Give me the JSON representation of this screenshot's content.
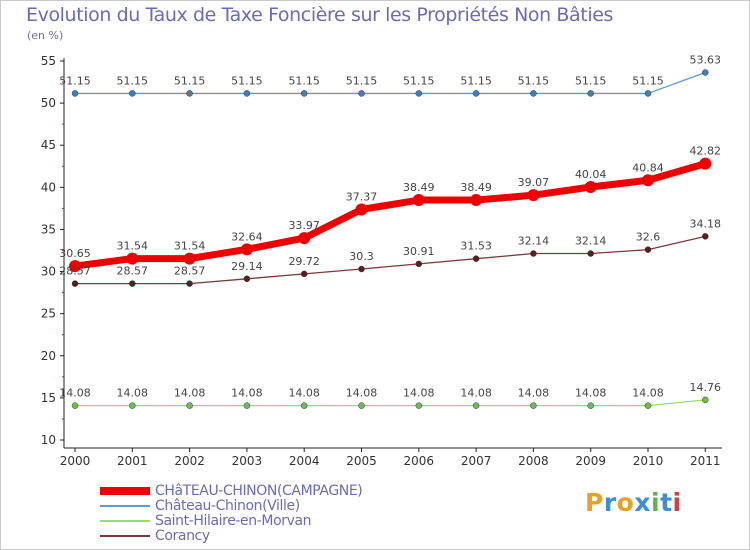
{
  "title": "Evolution du Taux de Taxe Foncière sur les Propriétés Non Bâties",
  "unit": "(en %)",
  "brand": "Proxiti",
  "brand_colors": [
    "#e8a02a",
    "#3c8fd0",
    "#e8a02a",
    "#3c8fd0",
    "#58b84a",
    "#3c8fd0",
    "#d04040"
  ],
  "chart_data": {
    "type": "line",
    "categories": [
      "2000",
      "2001",
      "2002",
      "2003",
      "2004",
      "2005",
      "2006",
      "2007",
      "2008",
      "2009",
      "2010",
      "2011"
    ],
    "ylim": [
      10,
      55
    ],
    "yticks": [
      "10",
      "15",
      "20",
      "25",
      "30",
      "35",
      "40",
      "45",
      "50",
      "55"
    ],
    "grid": false,
    "legend_position": "bottom-left",
    "series": [
      {
        "name": "Château-Chinon(Ville)",
        "color": "#5b9bd5",
        "marker": "#3c7fbf",
        "values": [
          51.15,
          51.15,
          51.15,
          51.15,
          51.15,
          51.15,
          51.15,
          51.15,
          51.15,
          51.15,
          51.15,
          53.63
        ],
        "labels": [
          "51.15",
          "51.15",
          "51.15",
          "51.15",
          "51.15",
          "51.15",
          "51.15",
          "51.15",
          "51.15",
          "51.15",
          "51.15",
          "53.63"
        ]
      },
      {
        "name": "Corancy",
        "color": "#7a3a3a",
        "marker": "#5a1e1e",
        "values": [
          28.57,
          28.57,
          28.57,
          29.14,
          29.72,
          30.3,
          30.91,
          31.53,
          32.14,
          32.14,
          32.6,
          34.18
        ],
        "labels": [
          "28.57",
          "28.57",
          "28.57",
          "29.14",
          "29.72",
          "30.3",
          "30.91",
          "31.53",
          "32.14",
          "32.14",
          "32.6",
          "34.18"
        ]
      },
      {
        "name": "Saint-Hilaire-en-Morvan",
        "color": "#99dd66",
        "marker": "#6cc03c",
        "values": [
          14.08,
          14.08,
          14.08,
          14.08,
          14.08,
          14.08,
          14.08,
          14.08,
          14.08,
          14.08,
          14.08,
          14.76
        ],
        "labels": [
          "14.08",
          "14.08",
          "14.08",
          "14.08",
          "14.08",
          "14.08",
          "14.08",
          "14.08",
          "14.08",
          "14.08",
          "14.08",
          "14.76"
        ]
      },
      {
        "name": "CHâTEAU-CHINON(CAMPAGNE)",
        "color": "#ee0000",
        "marker": "#ee0000",
        "values": [
          30.65,
          31.54,
          31.54,
          32.64,
          33.97,
          37.37,
          38.49,
          38.49,
          39.07,
          40.04,
          40.84,
          42.82
        ],
        "labels": [
          "30.65",
          "31.54",
          "31.54",
          "32.64",
          "33.97",
          "37.37",
          "38.49",
          "38.49",
          "39.07",
          "40.04",
          "40.84",
          "42.82"
        ]
      }
    ]
  },
  "legend": [
    {
      "name": "CHâTEAU-CHINON(CAMPAGNE)",
      "color": "#ee0000"
    },
    {
      "name": "Château-Chinon(Ville)",
      "color": "#5b9bd5"
    },
    {
      "name": "Saint-Hilaire-en-Morvan",
      "color": "#99dd66"
    },
    {
      "name": "Corancy",
      "color": "#7a3a3a"
    }
  ]
}
